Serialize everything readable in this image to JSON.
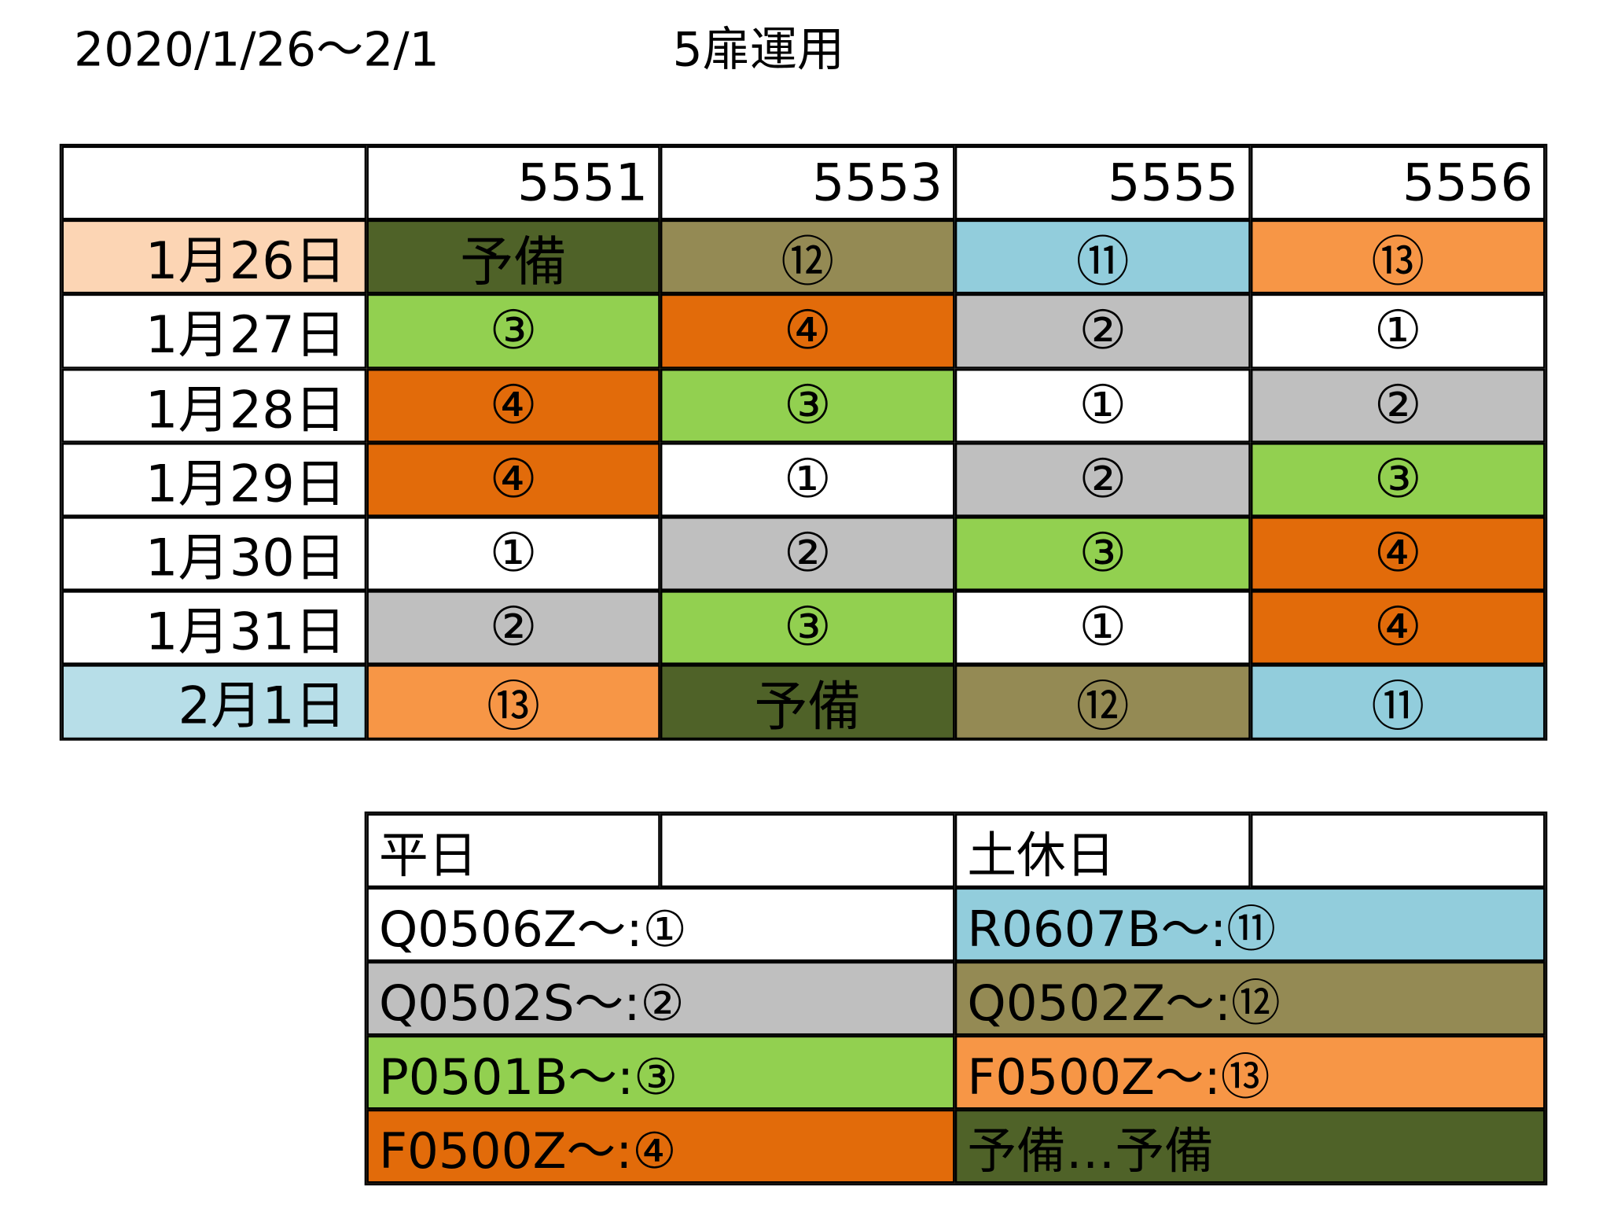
{
  "header": {
    "title": "2020/1/26～2/1",
    "subtitle": "5扉運用"
  },
  "schedule": {
    "columns": [
      "5551",
      "5553",
      "5555",
      "5556"
    ],
    "rows": [
      {
        "date": "1月26日",
        "date_color": "#fcd5b4",
        "cells": [
          {
            "text": "予備",
            "color": "#4f6228"
          },
          {
            "text": "⑫",
            "color": "#948a54"
          },
          {
            "text": "⑪",
            "color": "#92cddc"
          },
          {
            "text": "⑬",
            "color": "#f79646"
          }
        ]
      },
      {
        "date": "1月27日",
        "date_color": "#ffffff",
        "cells": [
          {
            "text": "③",
            "color": "#92d050"
          },
          {
            "text": "④",
            "color": "#e26b0a"
          },
          {
            "text": "②",
            "color": "#bfbfbf"
          },
          {
            "text": "①",
            "color": "#ffffff"
          }
        ]
      },
      {
        "date": "1月28日",
        "date_color": "#ffffff",
        "cells": [
          {
            "text": "④",
            "color": "#e26b0a"
          },
          {
            "text": "③",
            "color": "#92d050"
          },
          {
            "text": "①",
            "color": "#ffffff"
          },
          {
            "text": "②",
            "color": "#bfbfbf"
          }
        ]
      },
      {
        "date": "1月29日",
        "date_color": "#ffffff",
        "cells": [
          {
            "text": "④",
            "color": "#e26b0a"
          },
          {
            "text": "①",
            "color": "#ffffff"
          },
          {
            "text": "②",
            "color": "#bfbfbf"
          },
          {
            "text": "③",
            "color": "#92d050"
          }
        ]
      },
      {
        "date": "1月30日",
        "date_color": "#ffffff",
        "cells": [
          {
            "text": "①",
            "color": "#ffffff"
          },
          {
            "text": "②",
            "color": "#bfbfbf"
          },
          {
            "text": "③",
            "color": "#92d050"
          },
          {
            "text": "④",
            "color": "#e26b0a"
          }
        ]
      },
      {
        "date": "1月31日",
        "date_color": "#ffffff",
        "cells": [
          {
            "text": "②",
            "color": "#bfbfbf"
          },
          {
            "text": "③",
            "color": "#92d050"
          },
          {
            "text": "①",
            "color": "#ffffff"
          },
          {
            "text": "④",
            "color": "#e26b0a"
          }
        ]
      },
      {
        "date": "2月1日",
        "date_color": "#b7dee8",
        "cells": [
          {
            "text": "⑬",
            "color": "#f79646"
          },
          {
            "text": "予備",
            "color": "#4f6228"
          },
          {
            "text": "⑫",
            "color": "#948a54"
          },
          {
            "text": "⑪",
            "color": "#92cddc"
          }
        ]
      }
    ]
  },
  "legend": {
    "weekday_title": "平日",
    "holiday_title": "土休日",
    "rows": [
      {
        "weekday": {
          "text": "Q0506Z～:①",
          "color": "#ffffff"
        },
        "holiday": {
          "text": "R0607B～:⑪",
          "color": "#92cddc"
        }
      },
      {
        "weekday": {
          "text": "Q0502S～:②",
          "color": "#bfbfbf"
        },
        "holiday": {
          "text": "Q0502Z～:⑫",
          "color": "#948a54"
        }
      },
      {
        "weekday": {
          "text": "P0501B～:③",
          "color": "#92d050"
        },
        "holiday": {
          "text": "F0500Z～:⑬",
          "color": "#f79646"
        }
      },
      {
        "weekday": {
          "text": "F0500Z～:④",
          "color": "#e26b0a"
        },
        "holiday": {
          "text": "予備…予備",
          "color": "#4f6228"
        }
      }
    ]
  }
}
